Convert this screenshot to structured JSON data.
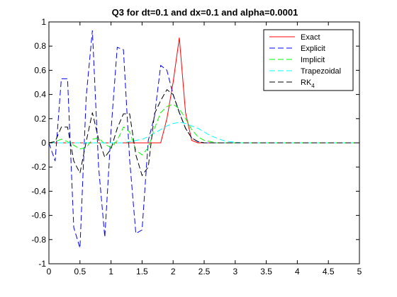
{
  "chart_data": {
    "type": "line",
    "title": "Q3 for dt=0.1 and dx=0.1 and alpha=0.0001",
    "xlabel": "",
    "ylabel": "",
    "xlim": [
      0,
      5
    ],
    "ylim": [
      -1,
      1
    ],
    "xticks": [
      0,
      0.5,
      1,
      1.5,
      2,
      2.5,
      3,
      3.5,
      4,
      4.5,
      5
    ],
    "xtick_labels": [
      "0",
      "0.5",
      "1",
      "1.5",
      "2",
      "2.5",
      "3",
      "3.5",
      "4",
      "4.5",
      "5"
    ],
    "yticks": [
      -1,
      -0.8,
      -0.6,
      -0.4,
      -0.2,
      0,
      0.2,
      0.4,
      0.6,
      0.8,
      1
    ],
    "ytick_labels": [
      "-1",
      "-0.8",
      "-0.6",
      "-0.4",
      "-0.2",
      "0",
      "0.2",
      "0.4",
      "0.6",
      "0.8",
      "1"
    ],
    "grid": false,
    "legend_position": "top-right",
    "x": [
      0,
      0.1,
      0.2,
      0.3,
      0.4,
      0.5,
      0.6,
      0.7,
      0.8,
      0.9,
      1.0,
      1.1,
      1.2,
      1.3,
      1.4,
      1.5,
      1.6,
      1.7,
      1.8,
      1.9,
      2.0,
      2.1,
      2.2,
      2.3,
      2.4,
      2.5,
      2.6,
      2.7,
      2.8,
      2.9,
      3.0,
      3.1,
      3.2,
      3.3,
      3.4,
      3.5,
      3.6,
      3.7,
      3.8,
      3.9,
      4.0,
      4.1,
      4.2,
      4.3,
      4.4,
      4.5,
      4.6,
      4.7,
      4.8,
      4.9,
      5.0
    ],
    "series": [
      {
        "name": "Exact",
        "color": "#ff0000",
        "dash": "solid",
        "values": [
          0,
          0,
          0,
          0,
          0,
          0,
          0,
          0,
          0,
          0,
          0,
          0,
          0,
          0,
          0,
          0,
          0,
          0,
          0,
          0.2,
          0.5,
          0.87,
          0.25,
          0.02,
          0,
          0,
          0,
          0,
          0,
          0,
          0,
          0,
          0,
          0,
          0,
          0,
          0,
          0,
          0,
          0,
          0,
          0,
          0,
          0,
          0,
          0,
          0,
          0,
          0,
          0,
          0
        ]
      },
      {
        "name": "Explicit",
        "color": "#0000ff",
        "dash": "long",
        "values": [
          0,
          -0.15,
          0.53,
          0.53,
          -0.7,
          -0.87,
          0.38,
          0.93,
          -0.2,
          -0.78,
          0.1,
          0.79,
          0.77,
          -0.14,
          -0.75,
          -0.72,
          0.02,
          0.22,
          0.64,
          0.6,
          0.4,
          0.25,
          0.12,
          0.04,
          0.01,
          0,
          0,
          0,
          0,
          0,
          0,
          0,
          0,
          0,
          0,
          0,
          0,
          0,
          0,
          0,
          0,
          0,
          0,
          0,
          0,
          0,
          0,
          0,
          0,
          0,
          0
        ]
      },
      {
        "name": "Implicit",
        "color": "#00ff00",
        "dash": "long",
        "values": [
          0,
          0.01,
          0.03,
          0.01,
          -0.02,
          -0.05,
          -0.04,
          0.03,
          0.04,
          -0.01,
          -0.04,
          0.02,
          0.13,
          0.09,
          -0.06,
          -0.1,
          -0.04,
          0.12,
          0.25,
          0.3,
          0.32,
          0.28,
          0.2,
          0.11,
          0.05,
          0.02,
          0.01,
          0,
          0,
          0,
          0,
          0,
          0,
          0,
          0,
          0,
          0,
          0,
          0,
          0,
          0,
          0,
          0,
          0,
          0,
          0,
          0,
          0,
          0,
          0,
          0
        ]
      },
      {
        "name": "Trapezoidal",
        "color": "#00ffff",
        "dash": "long",
        "values": [
          0,
          0,
          0,
          0,
          0,
          0,
          0,
          0,
          0,
          0,
          0,
          0,
          0,
          0.01,
          0.02,
          0.03,
          0.05,
          0.08,
          0.11,
          0.14,
          0.16,
          0.17,
          0.16,
          0.14,
          0.12,
          0.09,
          0.06,
          0.04,
          0.02,
          0.01,
          0.005,
          0,
          0,
          0,
          0,
          0,
          0,
          0,
          0,
          0,
          0,
          0,
          0,
          0,
          0,
          0,
          0,
          0,
          0,
          0,
          0
        ]
      },
      {
        "name": "RK4",
        "color": "#000000",
        "dash": "long",
        "values": [
          0,
          0.01,
          0.13,
          0.13,
          -0.15,
          -0.25,
          0.01,
          0.25,
          0.03,
          -0.12,
          -0.05,
          0.12,
          0.24,
          0.24,
          -0.1,
          -0.27,
          -0.2,
          0.24,
          0.35,
          0.44,
          0.4,
          0.25,
          0.12,
          0.04,
          0.01,
          0,
          0,
          0,
          0,
          0,
          0,
          0,
          0,
          0,
          0,
          0,
          0,
          0,
          0,
          0,
          0,
          0,
          0,
          0,
          0,
          0,
          0,
          0,
          0,
          0,
          0
        ]
      }
    ]
  }
}
